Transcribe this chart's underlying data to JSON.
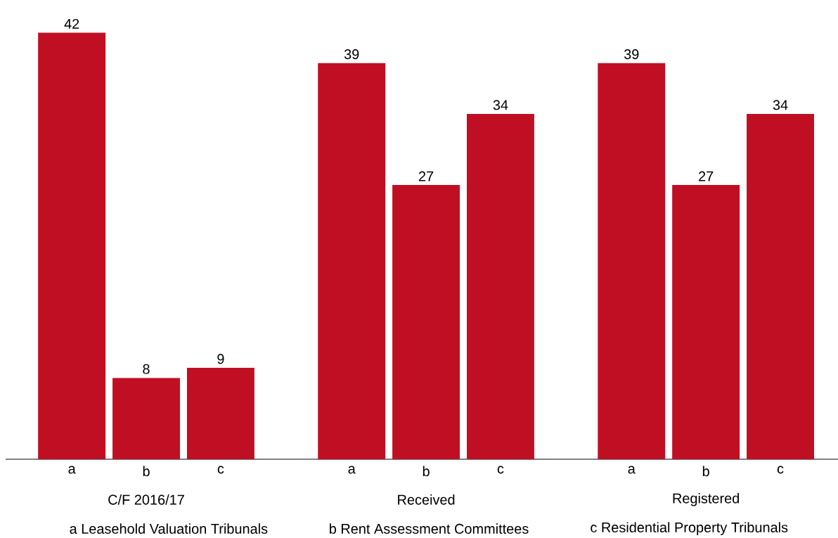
{
  "chart_data": {
    "type": "bar",
    "categories": [
      "C/F 2016/17",
      "Received",
      "Registered"
    ],
    "series": [
      {
        "name": "a",
        "color": "#c00f23",
        "values": [
          42,
          39,
          39
        ]
      },
      {
        "name": "b",
        "color": "#c00f23",
        "values": [
          8,
          27,
          27
        ]
      },
      {
        "name": "c",
        "color": "#c00f23",
        "values": [
          9,
          34,
          34
        ]
      }
    ],
    "data_labels": true,
    "annotations": [
      "a Leasehold Valuation Tribunals",
      "b Rent Assessment Committees",
      "c Residential Property Tribunals"
    ]
  }
}
